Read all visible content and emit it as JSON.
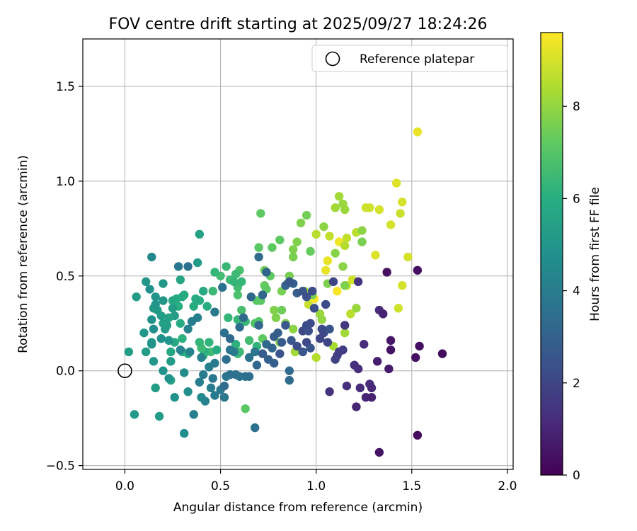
{
  "chart_data": {
    "type": "scatter",
    "title": "FOV centre drift starting at 2025/09/27 18:24:26",
    "xlabel": "Angular distance from reference (arcmin)",
    "ylabel": "Rotation from reference (arcmin)",
    "xlim": [
      -0.22,
      2.03
    ],
    "ylim": [
      -0.52,
      1.75
    ],
    "xticks": [
      0.0,
      0.5,
      1.0,
      1.5,
      2.0
    ],
    "xtick_labels": [
      "0.0",
      "0.5",
      "1.0",
      "1.5",
      "2.0"
    ],
    "yticks": [
      -0.5,
      0.0,
      0.5,
      1.0,
      1.5
    ],
    "ytick_labels": [
      "−0.5",
      "0.0",
      "0.5",
      "1.0",
      "1.5"
    ],
    "grid": true,
    "legend": {
      "position": "top-right",
      "label": "Reference platepar"
    },
    "reference_point": {
      "x": 0.0,
      "y": 0.0
    },
    "colorbar": {
      "label": "Hours from first FF file",
      "range": [
        0,
        9.6
      ],
      "ticks": [
        0,
        2,
        4,
        6,
        8
      ],
      "tick_labels": [
        "0",
        "2",
        "4",
        "6",
        "8"
      ],
      "colormap": "viridis"
    },
    "points": [
      [
        1.53,
        1.26,
        9.3
      ],
      [
        1.42,
        0.99,
        9.1
      ],
      [
        1.45,
        0.89,
        9.0
      ],
      [
        1.33,
        0.85,
        9.0
      ],
      [
        1.44,
        0.83,
        8.8
      ],
      [
        1.28,
        0.86,
        8.9
      ],
      [
        1.39,
        0.77,
        9.0
      ],
      [
        1.48,
        0.6,
        9.0
      ],
      [
        1.31,
        0.61,
        9.1
      ],
      [
        1.45,
        0.45,
        9.0
      ],
      [
        1.43,
        0.33,
        8.9
      ],
      [
        1.05,
        0.53,
        9.3
      ],
      [
        1.06,
        0.58,
        9.3
      ],
      [
        1.12,
        0.68,
        9.4
      ],
      [
        1.11,
        0.42,
        9.5
      ],
      [
        1.0,
        0.72,
        8.6
      ],
      [
        1.07,
        0.71,
        8.7
      ],
      [
        1.16,
        0.7,
        8.7
      ],
      [
        1.15,
        0.66,
        8.5
      ],
      [
        1.21,
        0.73,
        8.6
      ],
      [
        1.19,
        0.48,
        8.9
      ],
      [
        1.16,
        0.45,
        8.9
      ],
      [
        1.26,
        0.86,
        8.9
      ],
      [
        1.1,
        0.86,
        8.2
      ],
      [
        1.12,
        0.92,
        8.2
      ],
      [
        1.14,
        0.88,
        8.1
      ],
      [
        1.15,
        0.85,
        8.1
      ],
      [
        1.04,
        0.76,
        7.9
      ],
      [
        1.1,
        0.62,
        7.8
      ],
      [
        1.14,
        0.55,
        7.9
      ],
      [
        1.24,
        0.74,
        7.9
      ],
      [
        1.24,
        0.68,
        7.6
      ],
      [
        1.18,
        0.3,
        8.6
      ],
      [
        1.21,
        0.33,
        8.1
      ],
      [
        1.15,
        0.2,
        8.2
      ],
      [
        1.09,
        0.13,
        8.3
      ],
      [
        1.0,
        0.07,
        8.5
      ],
      [
        0.99,
        0.38,
        9.6
      ],
      [
        0.96,
        0.35,
        8.8
      ],
      [
        1.02,
        0.3,
        8.1
      ],
      [
        1.03,
        0.27,
        8.0
      ],
      [
        1.06,
        0.46,
        7.7
      ],
      [
        1.15,
        0.45,
        7.7
      ],
      [
        0.94,
        0.42,
        8.1
      ],
      [
        0.98,
        0.4,
        7.6
      ],
      [
        0.88,
        0.64,
        7.7
      ],
      [
        0.88,
        0.6,
        7.6
      ],
      [
        0.9,
        0.68,
        7.7
      ],
      [
        0.92,
        0.78,
        7.7
      ],
      [
        0.95,
        0.82,
        7.5
      ],
      [
        0.97,
        0.63,
        7.3
      ],
      [
        0.81,
        0.69,
        7.2
      ],
      [
        0.71,
        0.83,
        7.2
      ],
      [
        0.73,
        0.53,
        7.5
      ],
      [
        0.76,
        0.5,
        7.2
      ],
      [
        0.86,
        0.5,
        7.6
      ],
      [
        0.85,
        0.46,
        7.6
      ],
      [
        0.82,
        0.42,
        7.6
      ],
      [
        0.78,
        0.32,
        7.7
      ],
      [
        0.79,
        0.28,
        7.7
      ],
      [
        0.82,
        0.32,
        7.4
      ],
      [
        0.84,
        0.25,
        7.8
      ],
      [
        0.88,
        0.22,
        7.9
      ],
      [
        0.73,
        0.45,
        7.3
      ],
      [
        0.74,
        0.43,
        7.2
      ],
      [
        0.71,
        0.37,
        7.1
      ],
      [
        0.7,
        0.26,
        7.0
      ],
      [
        0.72,
        0.17,
        7.2
      ],
      [
        0.81,
        0.15,
        7.8
      ],
      [
        0.89,
        0.1,
        8.2
      ],
      [
        0.77,
        0.65,
        7.2
      ],
      [
        0.7,
        0.65,
        7.1
      ],
      [
        0.69,
        0.37,
        7.1
      ],
      [
        0.68,
        0.25,
        6.9
      ],
      [
        0.61,
        0.32,
        6.7
      ],
      [
        0.59,
        0.4,
        6.8
      ],
      [
        0.59,
        0.44,
        6.6
      ],
      [
        0.55,
        0.48,
        6.5
      ],
      [
        0.6,
        0.53,
        6.8
      ],
      [
        0.58,
        0.51,
        6.5
      ],
      [
        0.53,
        0.55,
        6.4
      ],
      [
        0.5,
        0.5,
        6.6
      ],
      [
        0.47,
        0.52,
        6.3
      ],
      [
        0.46,
        0.42,
        6.4
      ],
      [
        0.57,
        0.47,
        6.3
      ],
      [
        0.61,
        0.47,
        6.3
      ],
      [
        0.59,
        0.27,
        6.3
      ],
      [
        0.54,
        0.28,
        6.3
      ],
      [
        0.6,
        0.1,
        6.5
      ],
      [
        0.63,
        0.26,
        6.4
      ],
      [
        0.58,
        0.14,
        6.1
      ],
      [
        0.65,
        0.16,
        6.6
      ],
      [
        0.69,
        0.13,
        6.2
      ],
      [
        0.59,
        0.09,
        6.4
      ],
      [
        0.63,
        -0.2,
        7.1
      ],
      [
        0.45,
        0.1,
        6.6
      ],
      [
        0.42,
        0.1,
        6.1
      ],
      [
        0.4,
        0.12,
        6.5
      ],
      [
        0.39,
        0.15,
        6.3
      ],
      [
        0.41,
        0.08,
        6.2
      ],
      [
        0.44,
        0.15,
        6.2
      ],
      [
        0.48,
        0.11,
        5.9
      ],
      [
        0.43,
        0.34,
        5.9
      ],
      [
        0.41,
        0.42,
        5.8
      ],
      [
        0.39,
        0.37,
        6.0
      ],
      [
        0.37,
        0.38,
        5.9
      ],
      [
        0.36,
        0.34,
        5.9
      ],
      [
        0.3,
        0.39,
        5.7
      ],
      [
        0.31,
        0.4,
        5.8
      ],
      [
        0.27,
        0.38,
        5.9
      ],
      [
        0.25,
        0.37,
        5.7
      ],
      [
        0.28,
        0.34,
        6.0
      ],
      [
        0.29,
        0.25,
        5.9
      ],
      [
        0.3,
        0.17,
        6.1
      ],
      [
        0.26,
        0.15,
        5.8
      ],
      [
        0.24,
        0.1,
        5.7
      ],
      [
        0.3,
        0.1,
        5.8
      ],
      [
        0.33,
        0.09,
        5.9
      ],
      [
        0.38,
        0.57,
        5.2
      ],
      [
        0.39,
        0.72,
        5.5
      ],
      [
        0.29,
        0.48,
        5.6
      ],
      [
        0.25,
        0.33,
        5.3
      ],
      [
        0.26,
        0.29,
        5.2
      ],
      [
        0.23,
        0.28,
        5.5
      ],
      [
        0.21,
        0.22,
        5.2
      ],
      [
        0.22,
        0.24,
        5.3
      ],
      [
        0.2,
        0.25,
        5.4
      ],
      [
        0.19,
        0.29,
        5.3
      ],
      [
        0.17,
        0.32,
        5.2
      ],
      [
        0.15,
        0.33,
        5.1
      ],
      [
        0.16,
        0.35,
        5.0
      ],
      [
        0.2,
        0.37,
        5.1
      ],
      [
        0.2,
        0.46,
        5.1
      ],
      [
        0.11,
        0.47,
        5.1
      ],
      [
        0.13,
        0.43,
        4.8
      ],
      [
        0.16,
        0.39,
        4.9
      ],
      [
        0.14,
        0.6,
        4.5
      ],
      [
        0.1,
        0.2,
        5.0
      ],
      [
        0.11,
        0.1,
        5.3
      ],
      [
        0.14,
        0.15,
        5.2
      ],
      [
        0.15,
        0.05,
        5.1
      ],
      [
        0.02,
        0.1,
        5.3
      ],
      [
        0.06,
        0.39,
        5.2
      ],
      [
        0.14,
        0.27,
        4.8
      ],
      [
        0.15,
        0.22,
        4.7
      ],
      [
        0.14,
        0.14,
        4.9
      ],
      [
        0.19,
        0.17,
        4.8
      ],
      [
        0.23,
        0.16,
        5.0
      ],
      [
        0.16,
        -0.09,
        5.3
      ],
      [
        0.18,
        -0.24,
        5.2
      ],
      [
        0.05,
        -0.23,
        5.2
      ],
      [
        0.24,
        -0.05,
        5.5
      ],
      [
        0.23,
        -0.04,
        4.9
      ],
      [
        0.2,
        0.0,
        4.9
      ],
      [
        0.24,
        0.05,
        5.2
      ],
      [
        0.26,
        -0.14,
        4.8
      ],
      [
        0.31,
        -0.33,
        4.7
      ],
      [
        0.31,
        -0.01,
        4.6
      ],
      [
        0.33,
        -0.11,
        4.7
      ],
      [
        0.4,
        -0.14,
        4.5
      ],
      [
        0.42,
        -0.16,
        4.2
      ],
      [
        0.45,
        -0.09,
        4.0
      ],
      [
        0.36,
        -0.23,
        4.1
      ],
      [
        0.47,
        -0.13,
        3.9
      ],
      [
        0.52,
        -0.14,
        3.8
      ],
      [
        0.5,
        -0.1,
        3.9
      ],
      [
        0.46,
        -0.04,
        3.8
      ],
      [
        0.39,
        -0.06,
        4.1
      ],
      [
        0.41,
        -0.02,
        4.0
      ],
      [
        0.44,
        0.02,
        4.1
      ],
      [
        0.47,
        0.04,
        3.9
      ],
      [
        0.4,
        0.07,
        4.2
      ],
      [
        0.34,
        0.1,
        4.2
      ],
      [
        0.29,
        0.11,
        4.3
      ],
      [
        0.33,
        0.22,
        4.2
      ],
      [
        0.35,
        0.26,
        4.0
      ],
      [
        0.28,
        0.55,
        3.8
      ],
      [
        0.33,
        0.55,
        3.6
      ],
      [
        0.38,
        0.28,
        4.1
      ],
      [
        0.47,
        0.31,
        3.9
      ],
      [
        0.51,
        0.44,
        3.6
      ],
      [
        0.52,
        0.2,
        3.5
      ],
      [
        0.55,
        0.17,
        3.3
      ],
      [
        0.55,
        0.11,
        3.7
      ],
      [
        0.53,
        0.06,
        3.5
      ],
      [
        0.57,
        0.1,
        3.9
      ],
      [
        0.6,
        0.23,
        3.4
      ],
      [
        0.62,
        0.28,
        3.3
      ],
      [
        0.66,
        0.39,
        3.2
      ],
      [
        0.72,
        0.4,
        3.1
      ],
      [
        0.7,
        0.6,
        3.3
      ],
      [
        0.74,
        0.52,
        3.1
      ],
      [
        0.7,
        0.24,
        3.2
      ],
      [
        0.74,
        0.14,
        3.3
      ],
      [
        0.77,
        0.12,
        3.1
      ],
      [
        0.68,
        0.1,
        3.7
      ],
      [
        0.65,
        0.07,
        3.6
      ],
      [
        0.72,
        0.09,
        2.8
      ],
      [
        0.78,
        0.18,
        2.8
      ],
      [
        0.8,
        0.2,
        2.8
      ],
      [
        0.84,
        0.24,
        2.6
      ],
      [
        0.82,
        0.15,
        2.7
      ],
      [
        0.87,
        0.16,
        2.6
      ],
      [
        0.84,
        0.45,
        3.0
      ],
      [
        0.88,
        0.46,
        2.9
      ],
      [
        0.9,
        0.41,
        2.8
      ],
      [
        0.86,
        0.47,
        2.6
      ],
      [
        0.81,
        0.09,
        2.5
      ],
      [
        0.78,
        0.04,
        2.9
      ],
      [
        0.75,
        0.06,
        3.0
      ],
      [
        0.69,
        0.03,
        3.2
      ],
      [
        0.63,
        -0.03,
        3.5
      ],
      [
        0.65,
        -0.03,
        3.5
      ],
      [
        0.6,
        -0.03,
        3.6
      ],
      [
        0.58,
        -0.02,
        3.6
      ],
      [
        0.55,
        -0.02,
        3.5
      ],
      [
        0.53,
        -0.03,
        3.7
      ],
      [
        0.52,
        -0.08,
        3.4
      ],
      [
        0.68,
        -0.3,
        3.6
      ],
      [
        0.86,
        0.0,
        3.3
      ],
      [
        0.86,
        -0.05,
        3.3
      ],
      [
        0.93,
        0.42,
        2.5
      ],
      [
        0.95,
        0.39,
        2.4
      ],
      [
        0.98,
        0.42,
        2.2
      ],
      [
        0.99,
        0.33,
        2.3
      ],
      [
        0.97,
        0.25,
        2.2
      ],
      [
        0.95,
        0.24,
        2.2
      ],
      [
        0.93,
        0.21,
        2.1
      ],
      [
        0.96,
        0.21,
        2.3
      ],
      [
        0.95,
        0.15,
        2.1
      ],
      [
        0.9,
        0.13,
        2.3
      ],
      [
        0.93,
        0.1,
        2.5
      ],
      [
        0.97,
        0.12,
        2.5
      ],
      [
        1.04,
        0.2,
        2.1
      ],
      [
        1.07,
        0.22,
        2.4
      ],
      [
        1.09,
        0.47,
        2.0
      ],
      [
        1.05,
        0.35,
        2.2
      ],
      [
        1.03,
        0.22,
        2.1
      ],
      [
        1.02,
        0.17,
        2.0
      ],
      [
        1.06,
        0.15,
        2.0
      ],
      [
        1.1,
        0.06,
        1.8
      ],
      [
        1.11,
        0.08,
        1.8
      ],
      [
        1.12,
        0.1,
        1.7
      ],
      [
        1.14,
        0.11,
        1.7
      ],
      [
        1.15,
        0.24,
        1.6
      ],
      [
        1.22,
        0.47,
        1.4
      ],
      [
        1.2,
        0.03,
        1.3
      ],
      [
        1.22,
        0.01,
        1.2
      ],
      [
        1.25,
        0.14,
        1.2
      ],
      [
        1.28,
        -0.07,
        1.2
      ],
      [
        1.29,
        -0.09,
        1.1
      ],
      [
        1.33,
        0.32,
        1.2
      ],
      [
        1.26,
        -0.14,
        1.0
      ],
      [
        1.29,
        -0.14,
        0.9
      ],
      [
        1.23,
        -0.09,
        1.2
      ],
      [
        1.21,
        -0.19,
        1.0
      ],
      [
        1.16,
        -0.08,
        1.3
      ],
      [
        1.07,
        -0.11,
        1.4
      ],
      [
        1.32,
        0.05,
        0.8
      ],
      [
        1.37,
        0.52,
        0.4
      ],
      [
        1.39,
        0.16,
        0.6
      ],
      [
        1.39,
        0.11,
        0.5
      ],
      [
        1.38,
        0.01,
        0.7
      ],
      [
        1.53,
        0.53,
        0.4
      ],
      [
        1.54,
        0.13,
        0.4
      ],
      [
        1.52,
        0.07,
        0.4
      ],
      [
        1.66,
        0.09,
        0.3
      ],
      [
        1.53,
        -0.34,
        0.3
      ],
      [
        1.33,
        -0.43,
        0.5
      ],
      [
        1.35,
        0.3,
        0.9
      ]
    ]
  }
}
